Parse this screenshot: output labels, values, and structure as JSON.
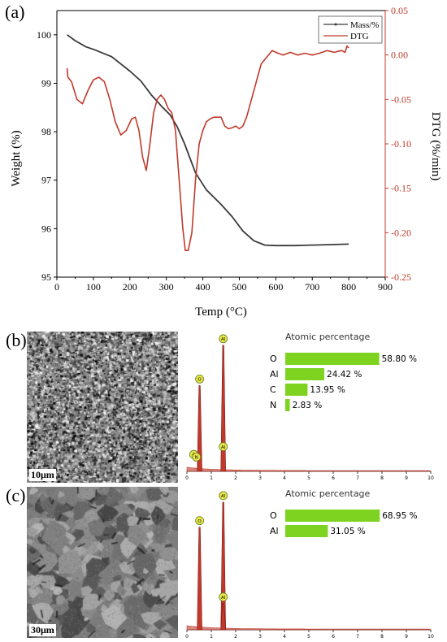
{
  "chart_data": [
    {
      "type": "line",
      "panel_label": "(a)",
      "xlabel": "Temp (°C)",
      "ylabel": "Weight (%)",
      "y2label": "DTG (%/min)",
      "xlim": [
        0,
        900
      ],
      "ylim": [
        95,
        100.5
      ],
      "y2lim": [
        -0.25,
        0.05
      ],
      "x_ticks": [
        "0",
        "100",
        "200",
        "300",
        "400",
        "500",
        "600",
        "700",
        "800",
        "900"
      ],
      "y_ticks": [
        "95",
        "96",
        "97",
        "98",
        "99",
        "100"
      ],
      "y2_ticks": [
        "-0.25",
        "-0.20",
        "-0.15",
        "-0.10",
        "-0.05",
        "0.00",
        "0.05"
      ],
      "legend": [
        "Mass/%",
        "DTG"
      ],
      "legend_position": "top-right",
      "colors": {
        "mass": "#3a3a3a",
        "dtg": "#c0392b"
      },
      "series": [
        {
          "name": "Mass/%",
          "axis": "left",
          "x": [
            28,
            50,
            80,
            100,
            150,
            200,
            230,
            260,
            290,
            310,
            330,
            350,
            380,
            410,
            450,
            480,
            510,
            540,
            570,
            600,
            650,
            700,
            750,
            800
          ],
          "y": [
            100.0,
            99.88,
            99.75,
            99.7,
            99.55,
            99.25,
            99.05,
            98.75,
            98.5,
            98.35,
            98.1,
            97.75,
            97.15,
            96.8,
            96.5,
            96.25,
            95.95,
            95.75,
            95.66,
            95.65,
            95.65,
            95.66,
            95.67,
            95.68
          ]
        },
        {
          "name": "DTG",
          "axis": "right",
          "x": [
            28,
            30,
            40,
            55,
            70,
            85,
            100,
            115,
            130,
            145,
            160,
            175,
            190,
            205,
            215,
            225,
            235,
            245,
            255,
            265,
            275,
            285,
            295,
            305,
            315,
            325,
            335,
            345,
            352,
            360,
            370,
            380,
            390,
            400,
            410,
            420,
            430,
            440,
            450,
            460,
            470,
            480,
            490,
            500,
            510,
            520,
            530,
            540,
            550,
            560,
            570,
            580,
            590,
            600,
            620,
            640,
            660,
            680,
            700,
            720,
            740,
            760,
            780,
            790,
            795,
            800
          ],
          "y": [
            -0.015,
            -0.025,
            -0.03,
            -0.05,
            -0.055,
            -0.04,
            -0.028,
            -0.025,
            -0.03,
            -0.05,
            -0.075,
            -0.09,
            -0.085,
            -0.072,
            -0.07,
            -0.085,
            -0.115,
            -0.13,
            -0.1,
            -0.065,
            -0.05,
            -0.045,
            -0.05,
            -0.06,
            -0.065,
            -0.085,
            -0.14,
            -0.195,
            -0.22,
            -0.22,
            -0.2,
            -0.14,
            -0.1,
            -0.085,
            -0.075,
            -0.072,
            -0.07,
            -0.07,
            -0.07,
            -0.08,
            -0.083,
            -0.082,
            -0.08,
            -0.083,
            -0.08,
            -0.07,
            -0.055,
            -0.04,
            -0.025,
            -0.01,
            -0.005,
            0.0,
            0.005,
            0.003,
            0.0,
            0.003,
            0.0,
            0.002,
            0.0,
            0.002,
            0.005,
            0.003,
            0.005,
            0.003,
            0.01,
            0.008
          ]
        }
      ]
    },
    {
      "type": "bar",
      "panel_label": "(b)",
      "title": "Atomic percentage",
      "categories": [
        "O",
        "Al",
        "C",
        "N"
      ],
      "values": [
        58.8,
        24.42,
        13.95,
        2.83
      ],
      "value_labels": [
        "58.80 %",
        "24.42 %",
        "13.95 %",
        "2.83 %"
      ],
      "xlim": [
        0,
        60
      ],
      "bar_color": "#7ed321"
    },
    {
      "type": "bar",
      "panel_label": "(c)",
      "title": "Atomic percentage",
      "categories": [
        "O",
        "Al"
      ],
      "values": [
        68.95,
        31.05
      ],
      "value_labels": [
        "68.95 %",
        "31.05 %"
      ],
      "xlim": [
        0,
        70
      ],
      "bar_color": "#7ed321"
    }
  ],
  "sem_images": [
    {
      "panel": "(b)",
      "scale_bar": "10μm"
    },
    {
      "panel": "(c)",
      "scale_bar": "30μm"
    }
  ],
  "edx_spectra": [
    {
      "panel": "(b)",
      "x_ticks": [
        "0",
        "1",
        "2",
        "3",
        "4",
        "5",
        "6",
        "7",
        "8",
        "9",
        "10"
      ],
      "peaks": [
        {
          "element": "O",
          "energy": 0.52,
          "height": 0.66,
          "marker": "O"
        },
        {
          "element": "Al",
          "energy": 1.49,
          "height": 0.97,
          "marker": "Al"
        },
        {
          "element": "C",
          "energy": 0.28,
          "height": 0.08,
          "marker": "C"
        },
        {
          "element": "N",
          "energy": 0.39,
          "height": 0.06,
          "marker": "N"
        },
        {
          "element": "Al",
          "energy": 1.49,
          "height": 0.14,
          "marker": "Al"
        }
      ]
    },
    {
      "panel": "(c)",
      "x_ticks": [
        "0",
        "1",
        "2",
        "3",
        "4",
        "5",
        "6",
        "7",
        "8",
        "9",
        "10"
      ],
      "peaks": [
        {
          "element": "O",
          "energy": 0.52,
          "height": 0.78,
          "marker": "O"
        },
        {
          "element": "Al",
          "energy": 1.49,
          "height": 0.97,
          "marker": "Al"
        },
        {
          "element": "Al",
          "energy": 1.49,
          "height": 0.2,
          "marker": "Al"
        }
      ]
    }
  ]
}
